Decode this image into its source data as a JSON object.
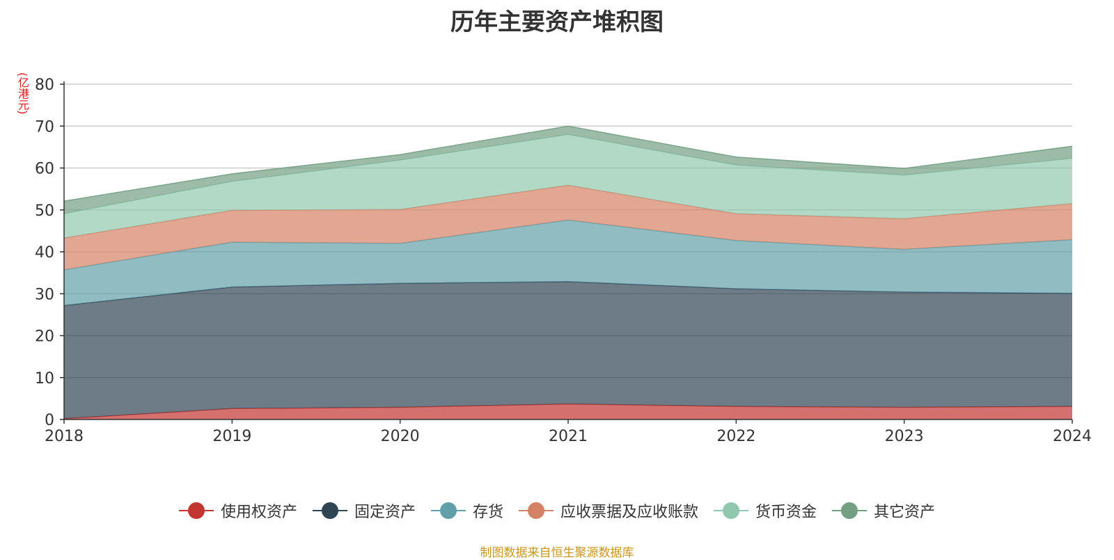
{
  "chart_data": {
    "type": "area",
    "stacked": true,
    "title": "历年主要资产堆积图",
    "y_unit": "(亿港元)",
    "categories": [
      "2018",
      "2019",
      "2020",
      "2021",
      "2022",
      "2023",
      "2024"
    ],
    "ylim": [
      0,
      80
    ],
    "yticks": [
      0,
      10,
      20,
      30,
      40,
      50,
      60,
      70,
      80
    ],
    "grid": true,
    "legend_position": "bottom",
    "series": [
      {
        "name": "使用权资产",
        "color": "#c23531",
        "values": [
          0.2,
          2.6,
          2.9,
          3.7,
          3.1,
          2.9,
          3.1
        ]
      },
      {
        "name": "固定资产",
        "color": "#2f4554",
        "values": [
          27.0,
          29.0,
          29.6,
          29.2,
          28.1,
          27.5,
          27.0
        ]
      },
      {
        "name": "存货",
        "color": "#61a0a8",
        "values": [
          8.5,
          10.7,
          9.5,
          14.7,
          11.5,
          10.2,
          12.8
        ]
      },
      {
        "name": "应收票据及应收账款",
        "color": "#d48265",
        "values": [
          7.6,
          7.6,
          8.1,
          8.3,
          6.4,
          7.3,
          8.6
        ]
      },
      {
        "name": "货币资金",
        "color": "#91c7ae",
        "values": [
          5.8,
          6.9,
          11.8,
          12.1,
          11.6,
          10.4,
          10.8
        ]
      },
      {
        "name": "其它资产",
        "color": "#749f83",
        "values": [
          3.0,
          1.8,
          1.3,
          2.0,
          1.9,
          1.6,
          2.9
        ]
      }
    ]
  },
  "footer": {
    "source": "制图数据来自恒生聚源数据库"
  }
}
